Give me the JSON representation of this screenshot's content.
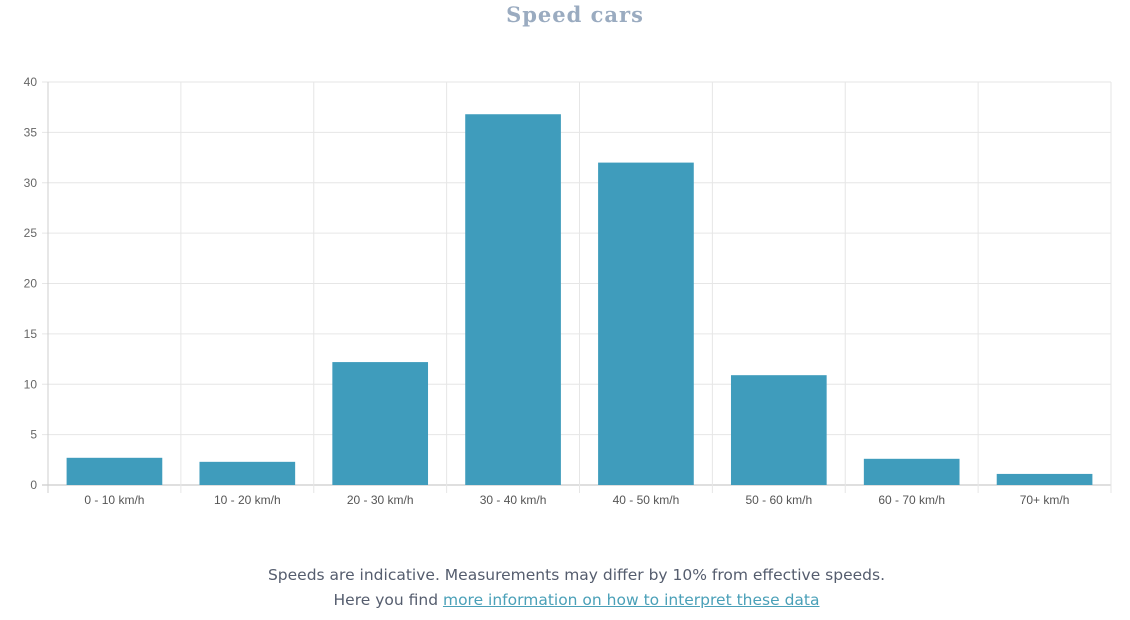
{
  "chart_data": {
    "type": "bar",
    "title": "Speed cars",
    "categories": [
      "0 - 10 km/h",
      "10 - 20 km/h",
      "20 - 30 km/h",
      "30 - 40 km/h",
      "40 - 50 km/h",
      "50 - 60 km/h",
      "60 - 70 km/h",
      "70+ km/h"
    ],
    "values": [
      2.7,
      2.3,
      12.2,
      36.8,
      32.0,
      10.9,
      2.6,
      1.1
    ],
    "ylim": [
      0,
      40
    ],
    "yticks": [
      0,
      5,
      10,
      15,
      20,
      25,
      30,
      35,
      40
    ],
    "grid": true,
    "bar_color": "#3f9cbc"
  },
  "footer": {
    "note": "Speeds are indicative. Measurements may differ by 10% from effective speeds.",
    "link_prefix": "Here you find ",
    "link_text": "more information on how to interpret these data"
  }
}
